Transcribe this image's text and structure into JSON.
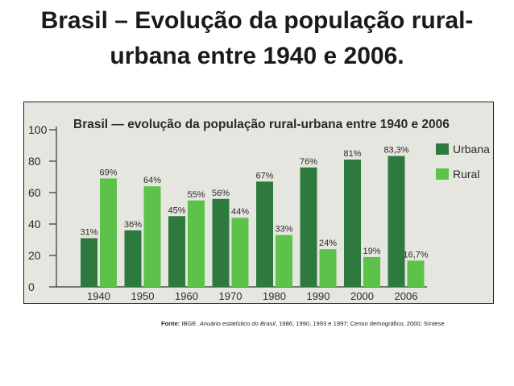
{
  "slide": {
    "title_line1": "Brasil – Evolução da população rural-",
    "title_line2": "urbana entre 1940 e 2006."
  },
  "colors": {
    "urbana": "#2e7a3e",
    "rural": "#5cc24a",
    "figure_bg": "#e6e6e0",
    "text": "#2a2a2a"
  },
  "chart_data": {
    "type": "bar",
    "title": "Brasil — evolução da população rural-urbana entre 1940 e 2006",
    "categories": [
      "1940",
      "1950",
      "1960",
      "1970",
      "1980",
      "1990",
      "2000",
      "2006"
    ],
    "series": [
      {
        "name": "Urbana",
        "values": [
          31,
          36,
          45,
          56,
          67,
          76,
          81,
          83.3
        ],
        "labels": [
          "31%",
          "36%",
          "45%",
          "56%",
          "67%",
          "76%",
          "81%",
          "83,3%"
        ]
      },
      {
        "name": "Rural",
        "values": [
          69,
          64,
          55,
          44,
          33,
          24,
          19,
          16.7
        ],
        "labels": [
          "69%",
          "64%",
          "55%",
          "44%",
          "33%",
          "24%",
          "19%",
          "16,7%"
        ]
      }
    ],
    "ylim": [
      0,
      100
    ],
    "yticks": [
      0,
      20,
      40,
      60,
      80,
      100
    ],
    "legend": "top-right",
    "grid": false
  },
  "source": {
    "label": "Fonte:",
    "pre": "IBGE.",
    "italic": "Anuário estatístico do Brasil",
    "post": ", 1986, 1990, 1993 e 1997; Censo demográfico, 2000; Síntese"
  }
}
